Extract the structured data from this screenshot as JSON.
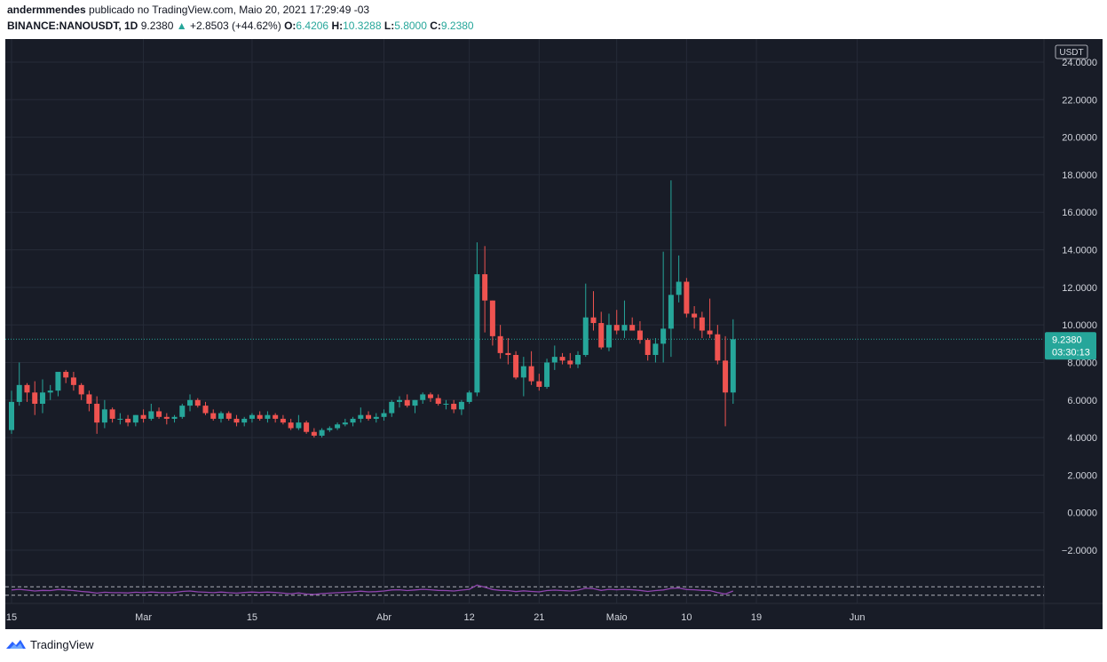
{
  "header": {
    "author": "andermmendes",
    "published_text": "publicado no TradingView.com, Maio 20, 2021 17:29:49 -03",
    "symbol": "BINANCE:NANOUSDT, 1D",
    "last": "9.2380",
    "change_arrow": "▲",
    "change": "+2.8503 (+44.62%)",
    "o_label": "O:",
    "o_value": "6.4206",
    "h_label": "H:",
    "h_value": "10.3288",
    "l_label": "L:",
    "l_value": "5.8000",
    "c_label": "C:",
    "c_value": "9.2380"
  },
  "price_axis": {
    "currency_badge": "USDT",
    "last_price_label": "9.2380",
    "countdown_label": "03:30:13"
  },
  "footer": {
    "logo_text": "TradingView"
  },
  "colors": {
    "up": "#26a69a",
    "down": "#ef5350",
    "background": "#181c27",
    "grid": "#262b38",
    "rsi": "#8e44ad",
    "axis_text": "#d1d4dc"
  },
  "chart_data": {
    "type": "candlestick",
    "y_ticks": [
      "24.0000",
      "22.0000",
      "20.0000",
      "18.0000",
      "16.0000",
      "14.0000",
      "12.0000",
      "10.0000",
      "8.0000",
      "6.0000",
      "4.0000",
      "2.0000",
      "0.0000",
      "−2.0000"
    ],
    "y_values": [
      24,
      22,
      20,
      18,
      16,
      14,
      12,
      10,
      8,
      6,
      4,
      2,
      0,
      -2
    ],
    "ylim": [
      -2.5,
      24.5
    ],
    "x_ticks": [
      "15",
      "Mar",
      "15",
      "Abr",
      "12",
      "21",
      "Maio",
      "10",
      "19",
      "Jun"
    ],
    "x_tick_index": [
      0,
      17,
      31,
      48,
      59,
      68,
      78,
      87,
      96,
      109
    ],
    "last_price": 9.238,
    "candles": [
      [
        4.4,
        6.5,
        4.2,
        5.9
      ],
      [
        5.9,
        8.0,
        5.7,
        6.8
      ],
      [
        6.8,
        6.9,
        5.9,
        6.4
      ],
      [
        6.4,
        7.0,
        5.2,
        5.8
      ],
      [
        5.8,
        7.1,
        5.3,
        6.4
      ],
      [
        6.4,
        6.8,
        6.0,
        6.5
      ],
      [
        6.5,
        7.4,
        6.2,
        7.5
      ],
      [
        7.5,
        7.6,
        6.9,
        7.2
      ],
      [
        7.2,
        7.5,
        6.5,
        6.8
      ],
      [
        6.8,
        6.9,
        6.0,
        6.3
      ],
      [
        6.3,
        6.5,
        5.4,
        5.8
      ],
      [
        5.8,
        6.2,
        4.2,
        4.8
      ],
      [
        4.8,
        6.0,
        4.5,
        5.5
      ],
      [
        5.5,
        5.6,
        4.8,
        5.0
      ],
      [
        5.0,
        5.3,
        4.7,
        5.0
      ],
      [
        5.0,
        5.2,
        4.6,
        4.8
      ],
      [
        4.8,
        5.2,
        4.6,
        5.2
      ],
      [
        5.2,
        5.5,
        4.8,
        5.0
      ],
      [
        5.0,
        5.8,
        4.9,
        5.4
      ],
      [
        5.4,
        5.6,
        5.0,
        5.1
      ],
      [
        5.1,
        5.3,
        4.7,
        5.0
      ],
      [
        5.0,
        5.2,
        4.8,
        5.1
      ],
      [
        5.1,
        5.8,
        5.0,
        5.7
      ],
      [
        5.7,
        6.3,
        5.4,
        6.0
      ],
      [
        6.0,
        6.1,
        5.6,
        5.7
      ],
      [
        5.7,
        5.9,
        5.2,
        5.3
      ],
      [
        5.3,
        5.5,
        4.9,
        5.0
      ],
      [
        5.0,
        5.4,
        4.8,
        5.3
      ],
      [
        5.3,
        5.4,
        4.9,
        5.0
      ],
      [
        5.0,
        5.2,
        4.6,
        4.8
      ],
      [
        4.8,
        5.1,
        4.6,
        5.0
      ],
      [
        5.0,
        5.3,
        4.8,
        5.2
      ],
      [
        5.2,
        5.4,
        4.9,
        5.0
      ],
      [
        5.0,
        5.4,
        4.8,
        5.2
      ],
      [
        5.2,
        5.3,
        4.8,
        5.0
      ],
      [
        5.0,
        5.2,
        4.7,
        4.8
      ],
      [
        4.8,
        5.0,
        4.4,
        4.5
      ],
      [
        4.5,
        5.2,
        4.4,
        4.8
      ],
      [
        4.8,
        4.9,
        4.2,
        4.3
      ],
      [
        4.3,
        4.5,
        4.0,
        4.1
      ],
      [
        4.1,
        4.5,
        4.0,
        4.4
      ],
      [
        4.4,
        4.6,
        4.3,
        4.5
      ],
      [
        4.5,
        4.8,
        4.4,
        4.7
      ],
      [
        4.7,
        5.0,
        4.6,
        4.8
      ],
      [
        4.8,
        5.1,
        4.6,
        5.0
      ],
      [
        5.0,
        5.6,
        4.8,
        5.2
      ],
      [
        5.2,
        5.4,
        4.9,
        5.0
      ],
      [
        5.0,
        5.3,
        4.8,
        5.1
      ],
      [
        5.1,
        5.5,
        4.9,
        5.3
      ],
      [
        5.3,
        6.0,
        5.1,
        5.9
      ],
      [
        5.9,
        6.2,
        5.6,
        6.0
      ],
      [
        6.0,
        6.3,
        5.6,
        5.7
      ],
      [
        5.7,
        6.0,
        5.3,
        6.0
      ],
      [
        6.0,
        6.4,
        5.8,
        6.3
      ],
      [
        6.3,
        6.4,
        5.9,
        6.1
      ],
      [
        6.1,
        6.3,
        5.7,
        5.8
      ],
      [
        5.8,
        6.0,
        5.5,
        5.8
      ],
      [
        5.8,
        6.0,
        5.3,
        5.5
      ],
      [
        5.5,
        6.0,
        5.2,
        5.9
      ],
      [
        5.9,
        6.5,
        5.8,
        6.4
      ],
      [
        6.4,
        14.4,
        6.2,
        12.7
      ],
      [
        12.7,
        14.2,
        9.6,
        11.3
      ],
      [
        11.3,
        11.3,
        8.9,
        9.4
      ],
      [
        9.4,
        10.0,
        8.2,
        8.5
      ],
      [
        8.5,
        9.3,
        7.9,
        8.4
      ],
      [
        8.4,
        8.6,
        7.1,
        7.2
      ],
      [
        7.2,
        8.3,
        6.2,
        7.8
      ],
      [
        7.8,
        8.6,
        6.8,
        7.0
      ],
      [
        7.0,
        7.4,
        6.5,
        6.7
      ],
      [
        6.7,
        8.2,
        6.6,
        8.0
      ],
      [
        8.0,
        8.9,
        7.6,
        8.3
      ],
      [
        8.3,
        8.5,
        7.9,
        8.1
      ],
      [
        8.1,
        8.5,
        7.7,
        7.9
      ],
      [
        7.9,
        8.6,
        7.7,
        8.4
      ],
      [
        8.4,
        12.2,
        8.3,
        10.4
      ],
      [
        10.4,
        11.8,
        9.7,
        10.1
      ],
      [
        10.1,
        10.7,
        8.7,
        8.8
      ],
      [
        8.8,
        10.6,
        8.6,
        10.0
      ],
      [
        10.0,
        10.8,
        9.5,
        9.7
      ],
      [
        9.7,
        11.3,
        9.3,
        10.0
      ],
      [
        10.0,
        10.4,
        9.7,
        9.7
      ],
      [
        9.7,
        10.2,
        9.0,
        9.2
      ],
      [
        9.2,
        9.3,
        8.1,
        8.4
      ],
      [
        8.4,
        9.3,
        8.0,
        9.0
      ],
      [
        9.0,
        13.9,
        8.0,
        9.8
      ],
      [
        9.8,
        17.7,
        8.3,
        11.6
      ],
      [
        11.6,
        13.7,
        11.2,
        12.3
      ],
      [
        12.3,
        12.5,
        10.4,
        10.6
      ],
      [
        10.6,
        11.0,
        9.8,
        10.4
      ],
      [
        10.4,
        10.7,
        9.3,
        9.7
      ],
      [
        9.7,
        11.4,
        9.3,
        9.5
      ],
      [
        9.5,
        10.0,
        7.9,
        8.1
      ],
      [
        8.1,
        9.4,
        4.6,
        6.4
      ],
      [
        6.4,
        10.3,
        5.8,
        9.238
      ]
    ],
    "rsi": {
      "upper_band": 70,
      "lower_band": 30,
      "values": [
        55,
        58,
        54,
        50,
        53,
        52,
        57,
        55,
        52,
        48,
        45,
        40,
        44,
        42,
        42,
        41,
        44,
        42,
        45,
        43,
        42,
        43,
        48,
        50,
        46,
        44,
        42,
        45,
        42,
        40,
        43,
        45,
        43,
        45,
        43,
        40,
        37,
        41,
        36,
        34,
        38,
        40,
        42,
        44,
        46,
        49,
        46,
        47,
        50,
        55,
        56,
        52,
        55,
        58,
        56,
        53,
        52,
        50,
        54,
        58,
        78,
        68,
        57,
        53,
        52,
        47,
        51,
        48,
        46,
        52,
        54,
        52,
        50,
        54,
        63,
        61,
        53,
        58,
        56,
        58,
        56,
        53,
        48,
        52,
        55,
        62,
        64,
        57,
        56,
        53,
        52,
        43,
        36,
        50
      ]
    }
  }
}
